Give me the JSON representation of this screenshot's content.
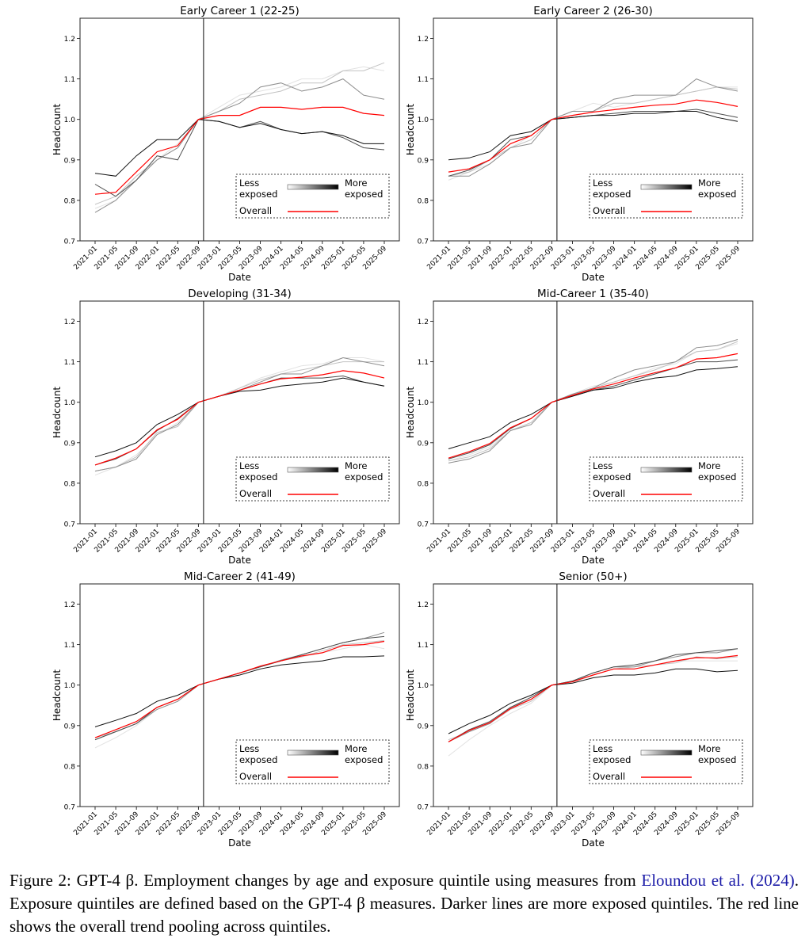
{
  "chart_data": {
    "type": "line",
    "layout": "3x2 grid of panels",
    "xlabel": "Date",
    "ylabel": "Headcount",
    "ylim": [
      0.7,
      1.25
    ],
    "yticks": [
      "0.7",
      "0.8",
      "0.9",
      "1.0",
      "1.1",
      "1.2"
    ],
    "x": [
      "2021-01",
      "2021-05",
      "2021-09",
      "2022-01",
      "2022-05",
      "2022-09",
      "2023-01",
      "2023-05",
      "2023-09",
      "2024-01",
      "2024-05",
      "2024-09",
      "2025-01",
      "2025-05",
      "2025-09"
    ],
    "vertical_line_date": "2022-10",
    "grid": false,
    "legend": {
      "placement": "lower-right",
      "less_label": [
        "Less",
        "exposed"
      ],
      "more_label": [
        "More",
        "exposed"
      ],
      "overall_label": "Overall"
    },
    "colors": {
      "quintiles": [
        "#e2e2e2",
        "#c2c2c2",
        "#8e8e8e",
        "#4e4e4e",
        "#111111"
      ],
      "overall": "#ff0000"
    },
    "panels": [
      {
        "title": "Early Career 1 (22-25)",
        "series": [
          {
            "values": [
              0.78,
              0.8,
              0.86,
              0.9,
              0.94,
              1.0,
              1.03,
              1.06,
              1.07,
              1.08,
              1.1,
              1.1,
              1.12,
              1.13,
              1.12
            ]
          },
          {
            "values": [
              0.79,
              0.81,
              0.86,
              0.9,
              0.93,
              1.0,
              1.02,
              1.05,
              1.06,
              1.07,
              1.09,
              1.09,
              1.12,
              1.12,
              1.14
            ]
          },
          {
            "values": [
              0.77,
              0.8,
              0.85,
              0.9,
              0.93,
              1.0,
              1.02,
              1.04,
              1.08,
              1.09,
              1.07,
              1.08,
              1.1,
              1.06,
              1.05
            ]
          },
          {
            "values": [
              0.84,
              0.81,
              0.85,
              0.91,
              0.9,
              1.0,
              0.995,
              0.98,
              0.995,
              0.975,
              0.965,
              0.97,
              0.955,
              0.93,
              0.925
            ]
          },
          {
            "values": [
              0.867,
              0.86,
              0.91,
              0.95,
              0.95,
              1.0,
              0.995,
              0.98,
              0.99,
              0.975,
              0.965,
              0.97,
              0.96,
              0.94,
              0.94
            ]
          },
          {
            "name": "Overall",
            "values": [
              0.815,
              0.82,
              0.87,
              0.92,
              0.935,
              1.0,
              1.01,
              1.01,
              1.03,
              1.03,
              1.025,
              1.03,
              1.03,
              1.015,
              1.01
            ]
          }
        ]
      },
      {
        "title": "Early Career 2 (26-30)",
        "series": [
          {
            "values": [
              0.85,
              0.87,
              0.89,
              0.93,
              0.96,
              1.0,
              1.02,
              1.04,
              1.03,
              1.04,
              1.05,
              1.06,
              1.07,
              1.08,
              1.08
            ]
          },
          {
            "values": [
              0.86,
              0.87,
              0.9,
              0.93,
              0.95,
              1.0,
              1.02,
              1.02,
              1.04,
              1.04,
              1.05,
              1.06,
              1.07,
              1.08,
              1.075
            ]
          },
          {
            "values": [
              0.86,
              0.86,
              0.89,
              0.93,
              0.94,
              1.0,
              1.02,
              1.02,
              1.05,
              1.06,
              1.06,
              1.06,
              1.1,
              1.08,
              1.07
            ]
          },
          {
            "values": [
              0.86,
              0.875,
              0.9,
              0.95,
              0.96,
              1.0,
              1.005,
              1.01,
              1.015,
              1.02,
              1.02,
              1.02,
              1.025,
              1.015,
              1.005
            ]
          },
          {
            "values": [
              0.9,
              0.905,
              0.92,
              0.96,
              0.97,
              1.0,
              1.005,
              1.01,
              1.01,
              1.015,
              1.015,
              1.02,
              1.02,
              1.005,
              0.995
            ]
          },
          {
            "name": "Overall",
            "values": [
              0.87,
              0.878,
              0.9,
              0.94,
              0.96,
              1.0,
              1.01,
              1.018,
              1.024,
              1.03,
              1.035,
              1.038,
              1.048,
              1.042,
              1.032
            ]
          }
        ]
      },
      {
        "title": "Developing (31-34)",
        "series": [
          {
            "values": [
              0.82,
              0.84,
              0.87,
              0.92,
              0.95,
              1.0,
              1.015,
              1.035,
              1.06,
              1.075,
              1.09,
              1.095,
              1.11,
              1.11,
              1.1
            ]
          },
          {
            "values": [
              0.83,
              0.84,
              0.865,
              0.925,
              0.94,
              1.0,
              1.015,
              1.035,
              1.055,
              1.07,
              1.08,
              1.09,
              1.1,
              1.1,
              1.1
            ]
          },
          {
            "values": [
              0.83,
              0.84,
              0.86,
              0.92,
              0.945,
              1.0,
              1.015,
              1.03,
              1.05,
              1.07,
              1.07,
              1.09,
              1.11,
              1.1,
              1.09
            ]
          },
          {
            "values": [
              0.845,
              0.86,
              0.885,
              0.93,
              0.96,
              1.0,
              1.015,
              1.03,
              1.045,
              1.06,
              1.06,
              1.06,
              1.065,
              1.05,
              1.04
            ]
          },
          {
            "values": [
              0.865,
              0.88,
              0.9,
              0.945,
              0.97,
              1.0,
              1.015,
              1.027,
              1.03,
              1.04,
              1.045,
              1.05,
              1.06,
              1.05,
              1.04
            ]
          },
          {
            "name": "Overall",
            "values": [
              0.845,
              0.862,
              0.885,
              0.932,
              0.958,
              1.0,
              1.015,
              1.03,
              1.045,
              1.058,
              1.062,
              1.068,
              1.078,
              1.072,
              1.06
            ]
          }
        ]
      },
      {
        "title": "Mid-Career 1 (35-40)",
        "series": [
          {
            "values": [
              0.855,
              0.87,
              0.89,
              0.93,
              0.95,
              1.0,
              1.02,
              1.04,
              1.05,
              1.065,
              1.085,
              1.095,
              1.125,
              1.13,
              1.145
            ]
          },
          {
            "values": [
              0.855,
              0.865,
              0.885,
              0.93,
              0.95,
              1.0,
              1.02,
              1.035,
              1.05,
              1.065,
              1.08,
              1.1,
              1.125,
              1.13,
              1.15
            ]
          },
          {
            "values": [
              0.85,
              0.86,
              0.88,
              0.93,
              0.945,
              1.0,
              1.02,
              1.035,
              1.06,
              1.08,
              1.09,
              1.1,
              1.135,
              1.14,
              1.155
            ]
          },
          {
            "values": [
              0.86,
              0.875,
              0.895,
              0.935,
              0.96,
              1.0,
              1.015,
              1.03,
              1.04,
              1.055,
              1.07,
              1.085,
              1.1,
              1.1,
              1.105
            ]
          },
          {
            "values": [
              0.885,
              0.9,
              0.915,
              0.95,
              0.97,
              1.0,
              1.015,
              1.03,
              1.035,
              1.05,
              1.06,
              1.065,
              1.08,
              1.083,
              1.088
            ]
          },
          {
            "name": "Overall",
            "values": [
              0.862,
              0.878,
              0.898,
              0.937,
              0.96,
              1.0,
              1.017,
              1.033,
              1.045,
              1.06,
              1.073,
              1.085,
              1.107,
              1.11,
              1.12
            ]
          }
        ]
      },
      {
        "title": "Mid-Career 2 (41-49)",
        "series": [
          {
            "values": [
              0.845,
              0.87,
              0.9,
              0.94,
              0.96,
              1.0,
              1.015,
              1.03,
              1.045,
              1.06,
              1.07,
              1.08,
              1.09,
              1.1,
              1.09
            ]
          },
          {
            "values": [
              0.87,
              0.885,
              0.905,
              0.945,
              0.965,
              1.0,
              1.015,
              1.03,
              1.045,
              1.06,
              1.07,
              1.085,
              1.1,
              1.105,
              1.11
            ]
          },
          {
            "values": [
              0.865,
              0.885,
              0.905,
              0.94,
              0.96,
              1.0,
              1.015,
              1.03,
              1.045,
              1.062,
              1.075,
              1.09,
              1.105,
              1.115,
              1.13
            ]
          },
          {
            "values": [
              0.865,
              0.885,
              0.905,
              0.945,
              0.965,
              1.0,
              1.015,
              1.03,
              1.045,
              1.06,
              1.075,
              1.09,
              1.105,
              1.115,
              1.12
            ]
          },
          {
            "values": [
              0.897,
              0.913,
              0.93,
              0.96,
              0.975,
              1.0,
              1.015,
              1.025,
              1.04,
              1.05,
              1.055,
              1.06,
              1.07,
              1.07,
              1.072
            ]
          },
          {
            "name": "Overall",
            "values": [
              0.87,
              0.89,
              0.91,
              0.945,
              0.965,
              1.0,
              1.015,
              1.03,
              1.047,
              1.06,
              1.072,
              1.08,
              1.098,
              1.1,
              1.108
            ]
          }
        ]
      },
      {
        "title": "Senior (50+)",
        "series": [
          {
            "values": [
              0.825,
              0.865,
              0.9,
              0.93,
              0.955,
              1.0,
              1.01,
              1.03,
              1.045,
              1.04,
              1.05,
              1.06,
              1.06,
              1.06,
              1.06
            ]
          },
          {
            "values": [
              0.865,
              0.885,
              0.905,
              0.94,
              0.96,
              1.0,
              1.01,
              1.025,
              1.04,
              1.045,
              1.05,
              1.055,
              1.07,
              1.065,
              1.07
            ]
          },
          {
            "values": [
              0.86,
              0.885,
              0.905,
              0.945,
              0.965,
              1.0,
              1.01,
              1.03,
              1.045,
              1.045,
              1.06,
              1.07,
              1.08,
              1.08,
              1.09
            ]
          },
          {
            "values": [
              0.86,
              0.89,
              0.91,
              0.945,
              0.97,
              1.0,
              1.01,
              1.03,
              1.045,
              1.05,
              1.06,
              1.075,
              1.08,
              1.085,
              1.09
            ]
          },
          {
            "values": [
              0.88,
              0.905,
              0.925,
              0.955,
              0.975,
              1.0,
              1.005,
              1.018,
              1.025,
              1.025,
              1.03,
              1.04,
              1.04,
              1.033,
              1.036
            ]
          },
          {
            "name": "Overall",
            "values": [
              0.86,
              0.888,
              0.907,
              0.942,
              0.965,
              1.0,
              1.008,
              1.025,
              1.04,
              1.04,
              1.05,
              1.06,
              1.068,
              1.067,
              1.073
            ]
          }
        ]
      }
    ]
  },
  "caption": {
    "prefix": "Figure 2: GPT-4 β. Employment changes by age and exposure quintile using measures from ",
    "citation": "Eloundou et al. (2024)",
    "suffix": ". Exposure quintiles are defined based on the GPT-4 β measures. Darker lines are more exposed quintiles. The red line shows the overall trend pooling across quintiles."
  }
}
